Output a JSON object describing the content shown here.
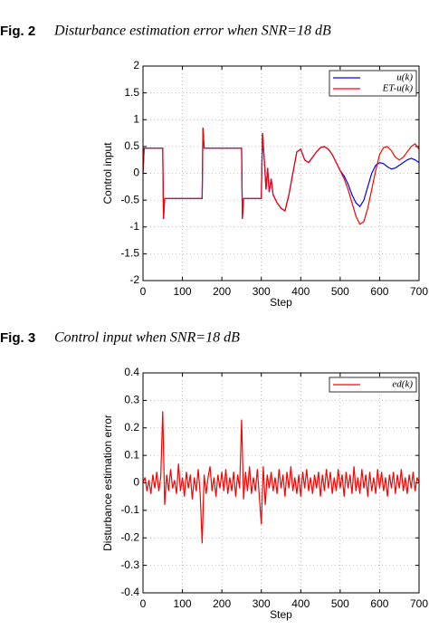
{
  "captions": [
    {
      "label": "Fig. 2",
      "text": "Disturbance estimation error when SNR=18 dB"
    },
    {
      "label": "Fig. 3",
      "text": "Control input when SNR=18 dB"
    }
  ],
  "chart_data": [
    {
      "type": "line",
      "ylabel": "Control input",
      "xlabel": "Step",
      "xlim": [
        0,
        700
      ],
      "xticks": [
        0,
        100,
        200,
        300,
        400,
        500,
        600,
        700
      ],
      "ylim": [
        -2,
        2
      ],
      "yticks": [
        -2,
        -1.5,
        -1,
        -0.5,
        0,
        0.5,
        1,
        1.5,
        2
      ],
      "grid": true,
      "legend": "upper right",
      "x": [
        0,
        3,
        50,
        52,
        55,
        150,
        152,
        155,
        250,
        252,
        255,
        300,
        303,
        308,
        312,
        316,
        320,
        325,
        330,
        340,
        350,
        360,
        370,
        380,
        390,
        400,
        410,
        420,
        430,
        440,
        450,
        460,
        470,
        480,
        490,
        500,
        510,
        520,
        530,
        540,
        550,
        560,
        570,
        580,
        590,
        600,
        610,
        620,
        630,
        640,
        650,
        660,
        670,
        680,
        690,
        700
      ],
      "series": [
        {
          "name": "u(k)",
          "color": "#0000ff",
          "values": [
            0,
            0.47,
            0.47,
            -0.85,
            -0.47,
            -0.47,
            0.85,
            0.47,
            0.47,
            -0.85,
            -0.47,
            -0.47,
            0.75,
            0.2,
            -0.3,
            0.1,
            -0.35,
            -0.1,
            -0.4,
            -0.55,
            -0.65,
            -0.7,
            -0.4,
            0.0,
            0.4,
            0.45,
            0.25,
            0.2,
            0.3,
            0.4,
            0.48,
            0.5,
            0.45,
            0.35,
            0.2,
            0.05,
            -0.05,
            -0.2,
            -0.4,
            -0.55,
            -0.62,
            -0.5,
            -0.25,
            0.0,
            0.15,
            0.2,
            0.18,
            0.12,
            0.08,
            0.1,
            0.15,
            0.2,
            0.25,
            0.28,
            0.25,
            0.2
          ]
        },
        {
          "name": "ET-u(k)",
          "color": "#ff0000",
          "values": [
            0,
            0.47,
            0.47,
            -0.85,
            -0.47,
            -0.47,
            0.85,
            0.47,
            0.47,
            -0.85,
            -0.47,
            -0.47,
            0.75,
            0.2,
            -0.3,
            0.1,
            -0.35,
            -0.1,
            -0.4,
            -0.55,
            -0.65,
            -0.7,
            -0.4,
            0.0,
            0.4,
            0.45,
            0.25,
            0.2,
            0.3,
            0.4,
            0.48,
            0.5,
            0.45,
            0.35,
            0.2,
            0.05,
            -0.1,
            -0.3,
            -0.55,
            -0.8,
            -0.95,
            -0.9,
            -0.65,
            -0.3,
            0.05,
            0.35,
            0.48,
            0.5,
            0.42,
            0.3,
            0.25,
            0.3,
            0.4,
            0.5,
            0.55,
            0.45
          ]
        }
      ]
    },
    {
      "type": "line",
      "ylabel": "Disturbance estimation error",
      "xlabel": "Step",
      "xlim": [
        0,
        700
      ],
      "xticks": [
        0,
        100,
        200,
        300,
        400,
        500,
        600,
        700
      ],
      "ylim": [
        -0.4,
        0.4
      ],
      "yticks": [
        -0.4,
        -0.3,
        -0.2,
        -0.1,
        0,
        0.1,
        0.2,
        0.3,
        0.4
      ],
      "grid": true,
      "legend": "upper right",
      "x": [
        0,
        5,
        10,
        15,
        20,
        25,
        30,
        35,
        40,
        45,
        50,
        55,
        60,
        65,
        70,
        75,
        80,
        85,
        90,
        95,
        100,
        105,
        110,
        115,
        120,
        125,
        130,
        135,
        140,
        145,
        150,
        155,
        160,
        165,
        170,
        175,
        180,
        185,
        190,
        195,
        200,
        205,
        210,
        215,
        220,
        225,
        230,
        235,
        240,
        245,
        250,
        255,
        260,
        265,
        270,
        275,
        280,
        285,
        290,
        295,
        300,
        305,
        310,
        315,
        320,
        325,
        330,
        335,
        340,
        345,
        350,
        355,
        360,
        365,
        370,
        375,
        380,
        385,
        390,
        395,
        400,
        405,
        410,
        415,
        420,
        425,
        430,
        435,
        440,
        445,
        450,
        455,
        460,
        465,
        470,
        475,
        480,
        485,
        490,
        495,
        500,
        505,
        510,
        515,
        520,
        525,
        530,
        535,
        540,
        545,
        550,
        555,
        560,
        565,
        570,
        575,
        580,
        585,
        590,
        595,
        600,
        605,
        610,
        615,
        620,
        625,
        630,
        635,
        640,
        645,
        650,
        655,
        660,
        665,
        670,
        675,
        680,
        685,
        690,
        695,
        700
      ],
      "series": [
        {
          "name": "ed(k)",
          "color": "#ff0000",
          "values": [
            0,
            0.02,
            -0.03,
            0.01,
            -0.04,
            0.03,
            -0.02,
            0.04,
            -0.03,
            0.02,
            0.26,
            -0.08,
            0.03,
            -0.03,
            0.05,
            -0.02,
            0.01,
            -0.04,
            0.07,
            -0.03,
            0.02,
            -0.05,
            0.04,
            -0.02,
            0.03,
            -0.06,
            0.02,
            -0.03,
            0.05,
            -0.04,
            -0.22,
            0.03,
            -0.04,
            0.02,
            0.06,
            -0.03,
            0.02,
            -0.05,
            0.03,
            -0.02,
            0.04,
            -0.03,
            0.05,
            -0.04,
            0.02,
            -0.03,
            0.04,
            -0.05,
            0.03,
            -0.02,
            0.23,
            -0.06,
            0.04,
            -0.03,
            0.06,
            -0.04,
            0.02,
            -0.03,
            0.05,
            -0.05,
            -0.15,
            0.06,
            -0.08,
            0.03,
            -0.02,
            0.04,
            -0.03,
            0.02,
            -0.04,
            0.05,
            -0.02,
            0.03,
            -0.05,
            0.04,
            -0.02,
            0.06,
            -0.03,
            0.02,
            -0.04,
            0.03,
            -0.05,
            0.04,
            -0.02,
            0.05,
            -0.03,
            0.02,
            -0.04,
            0.03,
            -0.02,
            0.04,
            -0.05,
            0.03,
            -0.03,
            0.05,
            -0.02,
            0.04,
            -0.04,
            0.02,
            -0.03,
            0.05,
            -0.02,
            0.03,
            -0.05,
            0.04,
            -0.02,
            0.03,
            -0.04,
            0.06,
            -0.03,
            0.02,
            -0.04,
            0.05,
            -0.02,
            0.03,
            -0.05,
            0.04,
            -0.03,
            0.02,
            -0.04,
            0.05,
            -0.02,
            0.04,
            -0.03,
            0.02,
            -0.05,
            0.03,
            -0.02,
            0.04,
            -0.04,
            0.03,
            -0.02,
            0.05,
            -0.03,
            0.02,
            -0.04,
            0.03,
            -0.02,
            0.04,
            -0.03,
            0.02,
            0.0
          ]
        }
      ]
    }
  ]
}
